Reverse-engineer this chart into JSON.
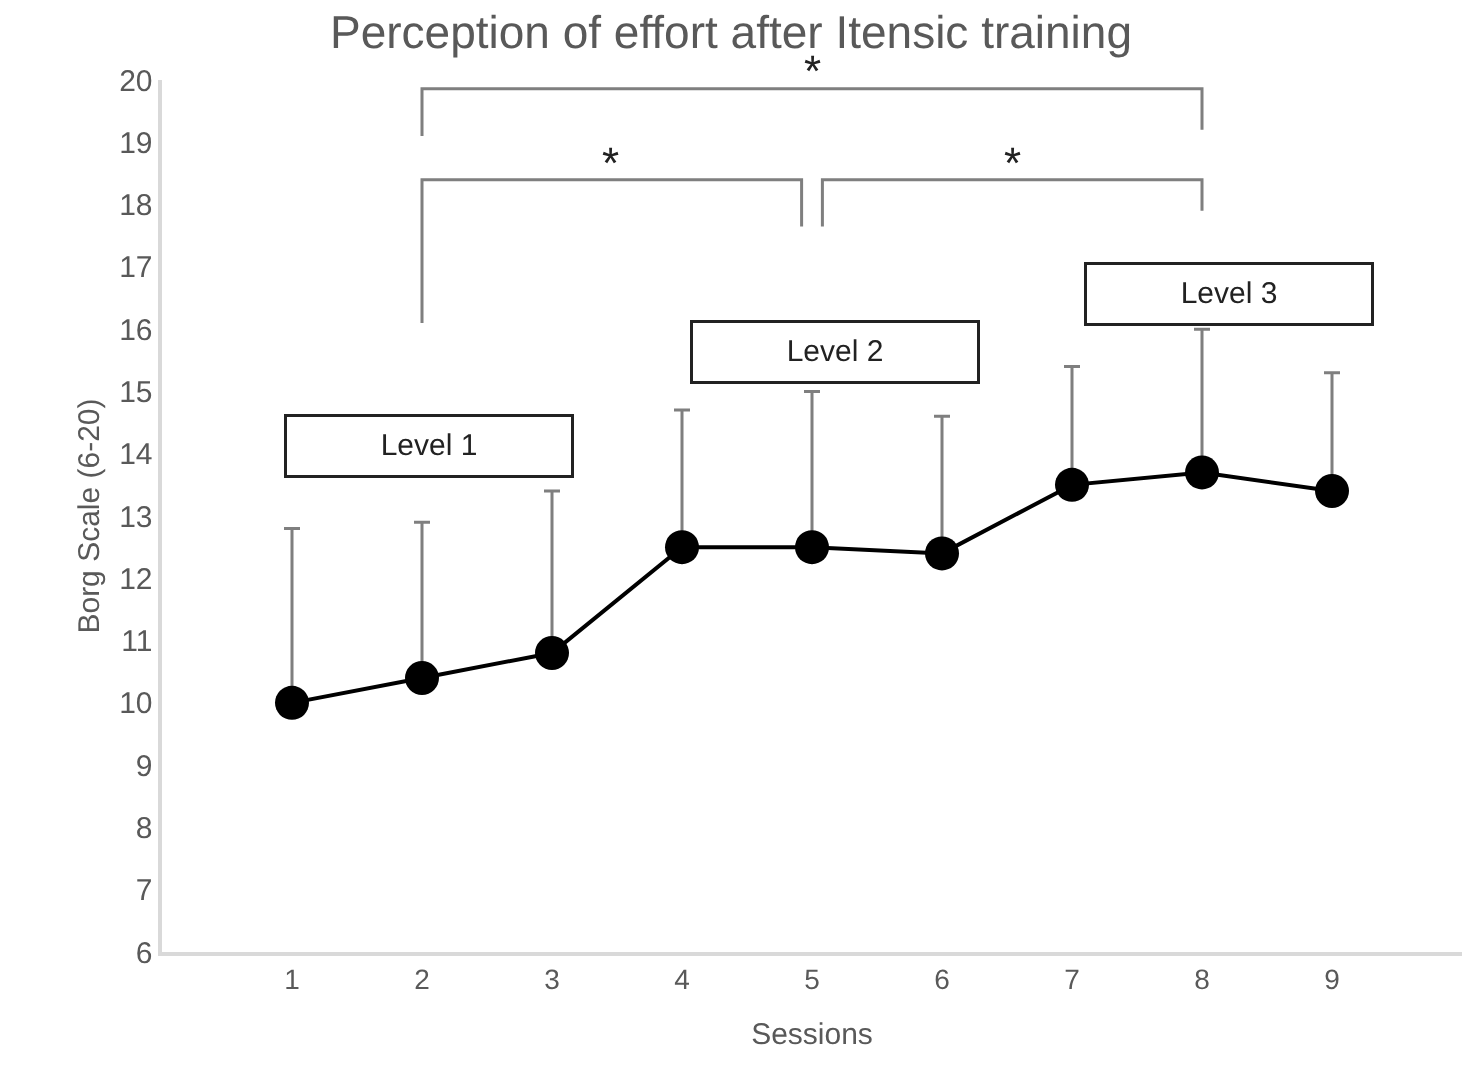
{
  "chart_data": {
    "type": "line",
    "title": "Perception of effort after Itensic training",
    "xlabel": "Sessions",
    "ylabel": "Borg Scale (6-20)",
    "x": [
      1,
      2,
      3,
      4,
      5,
      6,
      7,
      8,
      9
    ],
    "series": [
      {
        "color": "#000000",
        "values": [
          10.0,
          10.4,
          10.8,
          12.5,
          12.5,
          12.4,
          13.5,
          13.7,
          13.4
        ],
        "errors": [
          [
            10.0,
            12.8
          ],
          [
            10.4,
            12.9
          ],
          [
            10.8,
            13.4
          ],
          [
            12.5,
            14.7
          ],
          [
            12.5,
            15.0
          ],
          [
            12.4,
            14.6
          ],
          [
            13.5,
            15.4
          ],
          [
            13.7,
            16.0
          ],
          [
            13.4,
            15.3
          ]
        ]
      }
    ],
    "xlim": [
      0,
      10
    ],
    "xticks": [
      1,
      2,
      3,
      4,
      5,
      6,
      7,
      8,
      9
    ],
    "ylim": [
      6,
      20
    ],
    "yticks": [
      6,
      7,
      8,
      9,
      10,
      11,
      12,
      13,
      14,
      15,
      16,
      17,
      18,
      19,
      20
    ],
    "marker": "circle",
    "line_style": "solid",
    "annotations": [
      "*",
      "*",
      "*",
      "Level 1",
      "Level 2",
      "Level 3"
    ]
  }
}
